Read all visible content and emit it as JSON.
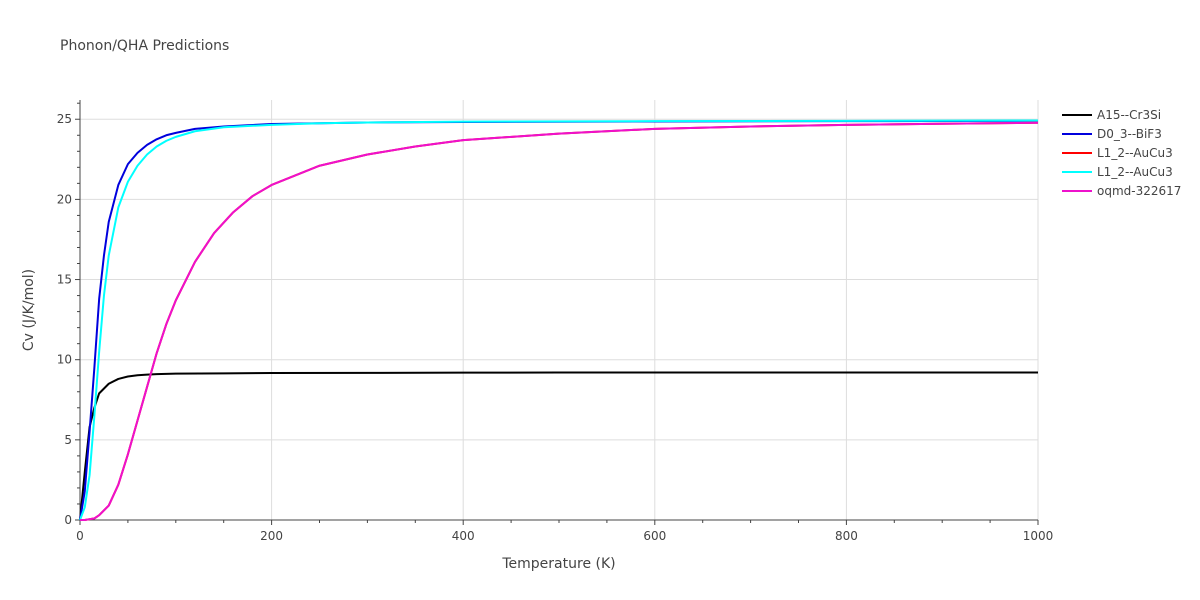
{
  "chart_data": {
    "type": "line",
    "title": "Phonon/QHA Predictions",
    "xlabel": "Temperature (K)",
    "ylabel": "Cv (J/K/mol)",
    "xlim": [
      0,
      1000
    ],
    "ylim": [
      0,
      26.2
    ],
    "xticks": [
      0,
      200,
      400,
      600,
      800,
      1000
    ],
    "yticks": [
      0,
      5,
      10,
      15,
      20,
      25
    ],
    "grid": true,
    "legend_position": "top-right",
    "series": [
      {
        "name": "A15--Cr3Si",
        "color": "#000000",
        "x": [
          0,
          5,
          10,
          15,
          20,
          30,
          40,
          50,
          60,
          70,
          80,
          100,
          150,
          200,
          300,
          400,
          500,
          600,
          700,
          800,
          900,
          1000
        ],
        "y": [
          0,
          3.0,
          5.8,
          7.0,
          7.9,
          8.5,
          8.8,
          8.95,
          9.03,
          9.07,
          9.1,
          9.13,
          9.15,
          9.17,
          9.18,
          9.19,
          9.2,
          9.2,
          9.2,
          9.2,
          9.2,
          9.2
        ]
      },
      {
        "name": "D0_3--BiF3",
        "color": "#0000dd",
        "x": [
          0,
          5,
          10,
          15,
          20,
          25,
          30,
          40,
          50,
          60,
          70,
          80,
          90,
          100,
          120,
          150,
          200,
          300,
          400,
          600,
          800,
          1000
        ],
        "y": [
          0,
          1.8,
          5.5,
          9.5,
          13.8,
          16.5,
          18.6,
          20.9,
          22.2,
          22.9,
          23.4,
          23.75,
          24.0,
          24.15,
          24.4,
          24.55,
          24.7,
          24.8,
          24.83,
          24.86,
          24.88,
          24.9
        ]
      },
      {
        "name": "L1_2--AuCu3",
        "color": "#ff0000",
        "x": [
          0,
          5,
          10,
          15,
          20,
          30,
          40,
          50,
          60,
          70,
          80,
          90,
          100,
          120,
          140,
          160,
          180,
          200,
          250,
          300,
          350,
          400,
          500,
          600,
          700,
          800,
          900,
          1000
        ],
        "y": [
          0,
          0.0,
          0.05,
          0.1,
          0.3,
          0.9,
          2.2,
          4.1,
          6.2,
          8.3,
          10.4,
          12.2,
          13.7,
          16.1,
          17.9,
          19.2,
          20.2,
          20.9,
          22.1,
          22.8,
          23.3,
          23.7,
          24.1,
          24.4,
          24.55,
          24.65,
          24.72,
          24.78
        ]
      },
      {
        "name": "L1_2--AuCu3",
        "color": "#00ffff",
        "x": [
          0,
          5,
          10,
          15,
          20,
          25,
          30,
          40,
          50,
          60,
          70,
          80,
          90,
          100,
          120,
          150,
          200,
          250,
          300,
          400,
          600,
          800,
          1000
        ],
        "y": [
          0,
          0.8,
          2.8,
          6.5,
          10.5,
          14.0,
          16.5,
          19.5,
          21.1,
          22.1,
          22.8,
          23.3,
          23.65,
          23.9,
          24.25,
          24.5,
          24.65,
          24.75,
          24.8,
          24.85,
          24.88,
          24.9,
          24.92
        ]
      },
      {
        "name": "oqmd-322617",
        "color": "#ee11cc",
        "x": [
          0,
          5,
          10,
          15,
          20,
          30,
          40,
          50,
          60,
          70,
          80,
          90,
          100,
          120,
          140,
          160,
          180,
          200,
          250,
          300,
          350,
          400,
          500,
          600,
          700,
          800,
          900,
          1000
        ],
        "y": [
          0,
          0.0,
          0.05,
          0.1,
          0.3,
          0.9,
          2.2,
          4.1,
          6.2,
          8.3,
          10.4,
          12.2,
          13.7,
          16.1,
          17.9,
          19.2,
          20.2,
          20.9,
          22.1,
          22.8,
          23.3,
          23.7,
          24.1,
          24.4,
          24.55,
          24.65,
          24.72,
          24.78
        ]
      }
    ]
  }
}
